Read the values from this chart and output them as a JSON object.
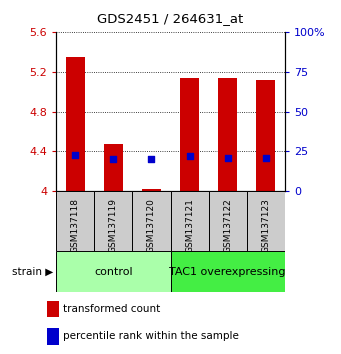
{
  "title": "GDS2451 / 264631_at",
  "samples": [
    "GSM137118",
    "GSM137119",
    "GSM137120",
    "GSM137121",
    "GSM137122",
    "GSM137123"
  ],
  "red_values": [
    5.35,
    4.47,
    4.02,
    5.14,
    5.14,
    5.12
  ],
  "blue_values_pct": [
    23,
    20,
    20,
    22,
    21,
    21
  ],
  "ylim_left": [
    4.0,
    5.6
  ],
  "ylim_right": [
    0,
    100
  ],
  "yticks_left": [
    4.0,
    4.4,
    4.8,
    5.2,
    5.6
  ],
  "ytick_labels_left": [
    "4",
    "4.4",
    "4.8",
    "5.2",
    "5.6"
  ],
  "yticks_right": [
    0,
    25,
    50,
    75,
    100
  ],
  "ytick_labels_right": [
    "0",
    "25",
    "50",
    "75",
    "100%"
  ],
  "groups": [
    {
      "label": "control",
      "indices": [
        0,
        1,
        2
      ],
      "color": "#aaffaa"
    },
    {
      "label": "TAC1 overexpressing",
      "indices": [
        3,
        4,
        5
      ],
      "color": "#44ee44"
    }
  ],
  "bar_color": "#cc0000",
  "dot_color": "#0000cc",
  "bar_width": 0.5,
  "bar_bottom": 4.0,
  "ylabel_left_color": "#cc0000",
  "ylabel_right_color": "#0000cc",
  "legend_items": [
    {
      "color": "#cc0000",
      "label": "transformed count"
    },
    {
      "color": "#0000cc",
      "label": "percentile rank within the sample"
    }
  ],
  "strain_label": "strain"
}
